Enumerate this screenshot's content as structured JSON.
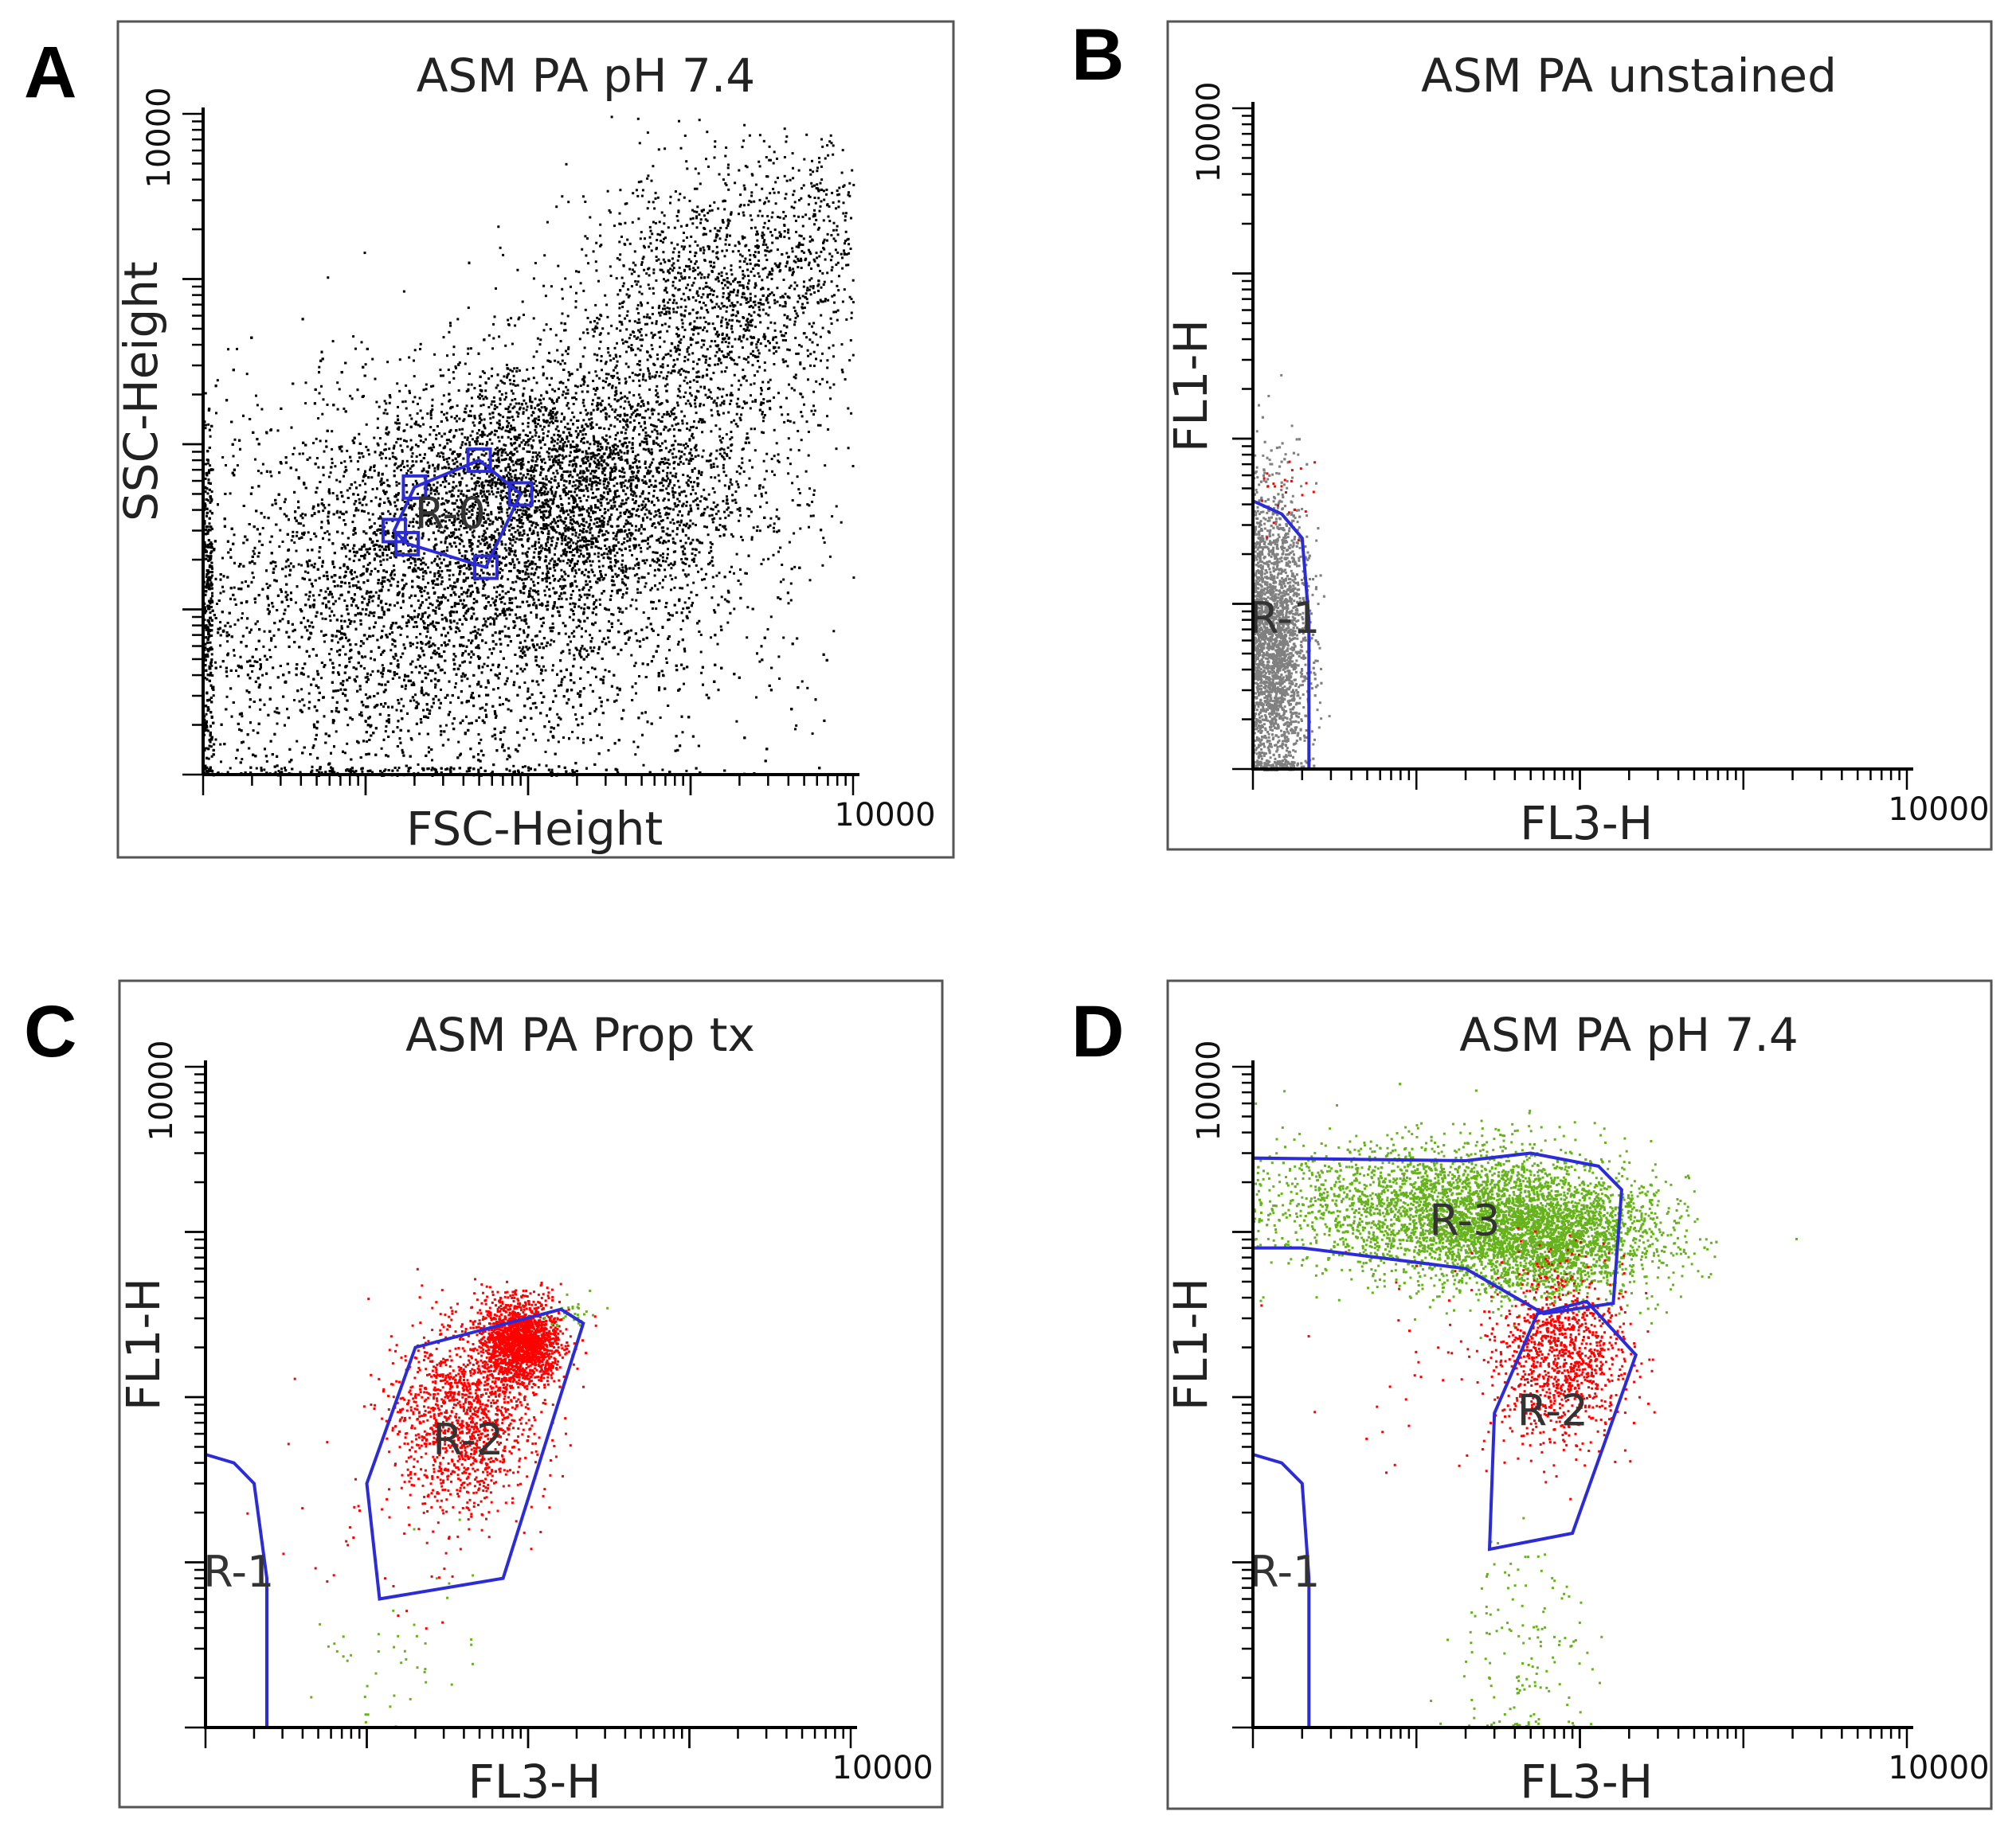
{
  "figure": {
    "panels": [
      {
        "letter": "A",
        "title": "ASM PA pH 7.4",
        "xlabel": "FSC-Height",
        "ylabel": "SSC-Height"
      },
      {
        "letter": "B",
        "title": "ASM PA unstained",
        "xlabel": "FL3-H",
        "ylabel": "FL1-H"
      },
      {
        "letter": "C",
        "title": "ASM PA Prop tx",
        "xlabel": "FL3-H",
        "ylabel": "FL1-H"
      },
      {
        "letter": "D",
        "title": "ASM PA pH 7.4",
        "xlabel": "FL3-H",
        "ylabel": "FL1-H"
      }
    ]
  },
  "colors": {
    "gate": "#2b2bd8",
    "gate_fill_r0": "#7f7fd0",
    "events_all": "#000000",
    "events_unstained": "#808080",
    "events_red": "#ff0000",
    "events_green": "#66b21a"
  },
  "chart_data": [
    {
      "panel": "A",
      "type": "scatter",
      "title": "ASM PA pH 7.4",
      "xlabel": "FSC-Height",
      "ylabel": "SSC-Height",
      "xscale": "log",
      "yscale": "log",
      "xlim": [
        1,
        10000
      ],
      "ylim": [
        1,
        10000
      ],
      "x_tick_label": "10000",
      "y_tick_label": "10000",
      "series": [
        {
          "color": "#000000",
          "clusters": [
            {
              "cx": 20,
              "cy": 9,
              "sx": 0.9,
              "sy": 0.6,
              "n": 9000
            },
            {
              "cx": 150,
              "cy": 55,
              "sx": 0.6,
              "sy": 0.4,
              "n": 4000
            },
            {
              "cx": 1500,
              "cy": 700,
              "sx": 0.45,
              "sy": 0.4,
              "n": 1600
            },
            {
              "cx": 5000,
              "cy": 2500,
              "sx": 0.25,
              "sy": 0.3,
              "n": 250
            }
          ]
        }
      ],
      "gates": [
        {
          "name": "R-0",
          "filled": true,
          "vertices": [
            [
              15,
              30
            ],
            [
              20,
              55
            ],
            [
              50,
              80
            ],
            [
              90,
              50
            ],
            [
              55,
              18
            ],
            [
              18,
              25
            ]
          ]
        }
      ]
    },
    {
      "panel": "B",
      "type": "scatter",
      "title": "ASM PA unstained",
      "xlabel": "FL3-H",
      "ylabel": "FL1-H",
      "xscale": "log",
      "yscale": "log",
      "xlim": [
        1,
        10000
      ],
      "ylim": [
        1,
        10000
      ],
      "x_tick_label": "10000",
      "y_tick_label": "10000",
      "series": [
        {
          "color": "#808080",
          "clusters": [
            {
              "cx": 1.35,
              "cy": 6,
              "sx": 0.1,
              "sy": 0.45,
              "n": 3500
            }
          ]
        },
        {
          "color": "#ff0000",
          "clusters": [
            {
              "cx": 1.5,
              "cy": 45,
              "sx": 0.1,
              "sy": 0.12,
              "n": 25
            }
          ]
        }
      ],
      "gates": [
        {
          "name": "R-1",
          "filled": false,
          "vertices": [
            [
              1,
              1
            ],
            [
              1,
              42
            ],
            [
              1.5,
              35
            ],
            [
              2,
              25
            ],
            [
              2.2,
              8
            ],
            [
              2.2,
              1
            ]
          ]
        }
      ]
    },
    {
      "panel": "C",
      "type": "scatter",
      "title": "ASM PA Prop tx",
      "xlabel": "FL3-H",
      "ylabel": "FL1-H",
      "xscale": "log",
      "yscale": "log",
      "xlim": [
        1,
        10000
      ],
      "ylim": [
        1,
        10000
      ],
      "x_tick_label": "10000",
      "y_tick_label": "10000",
      "series": [
        {
          "color": "#ff0000",
          "clusters": [
            {
              "cx": 90,
              "cy": 220,
              "sx": 0.12,
              "sy": 0.12,
              "n": 1800
            },
            {
              "cx": 40,
              "cy": 80,
              "sx": 0.22,
              "sy": 0.28,
              "n": 1400
            },
            {
              "cx": 12,
              "cy": 20,
              "sx": 0.35,
              "sy": 0.45,
              "n": 40
            }
          ]
        },
        {
          "color": "#66b21a",
          "clusters": [
            {
              "cx": 15,
              "cy": 3,
              "sx": 0.25,
              "sy": 0.3,
              "n": 45
            },
            {
              "cx": 180,
              "cy": 320,
              "sx": 0.06,
              "sy": 0.05,
              "n": 30
            }
          ]
        }
      ],
      "gates": [
        {
          "name": "R-1",
          "filled": false,
          "vertices": [
            [
              1,
              1
            ],
            [
              1,
              45
            ],
            [
              1.5,
              40
            ],
            [
              2,
              30
            ],
            [
              2.4,
              8
            ],
            [
              2.4,
              1
            ]
          ]
        },
        {
          "name": "R-2",
          "filled": false,
          "vertices": [
            [
              12,
              6
            ],
            [
              10,
              30
            ],
            [
              20,
              200
            ],
            [
              160,
              340
            ],
            [
              220,
              280
            ],
            [
              70,
              8
            ]
          ]
        }
      ]
    },
    {
      "panel": "D",
      "type": "scatter",
      "title": "ASM PA pH 7.4",
      "xlabel": "FL3-H",
      "ylabel": "FL1-H",
      "xscale": "log",
      "yscale": "log",
      "xlim": [
        1,
        10000
      ],
      "ylim": [
        1,
        10000
      ],
      "x_tick_label": "10000",
      "y_tick_label": "10000",
      "series": [
        {
          "color": "#66b21a",
          "clusters": [
            {
              "cx": 15,
              "cy": 1400,
              "sx": 0.5,
              "sy": 0.2,
              "n": 3200
            },
            {
              "cx": 60,
              "cy": 950,
              "sx": 0.35,
              "sy": 0.18,
              "n": 2600
            },
            {
              "cx": 45,
              "cy": 3,
              "sx": 0.2,
              "sy": 0.35,
              "n": 150
            }
          ]
        },
        {
          "color": "#ff0000",
          "clusters": [
            {
              "cx": 75,
              "cy": 180,
              "sx": 0.2,
              "sy": 0.25,
              "n": 1100
            },
            {
              "cx": 20,
              "cy": 180,
              "sx": 0.4,
              "sy": 0.4,
              "n": 60
            }
          ]
        }
      ],
      "gates": [
        {
          "name": "R-1",
          "filled": false,
          "vertices": [
            [
              1,
              1
            ],
            [
              1,
              45
            ],
            [
              1.5,
              40
            ],
            [
              2,
              30
            ],
            [
              2.2,
              8
            ],
            [
              2.2,
              1
            ]
          ]
        },
        {
          "name": "R-2",
          "filled": false,
          "vertices": [
            [
              28,
              12
            ],
            [
              30,
              80
            ],
            [
              55,
              320
            ],
            [
              110,
              380
            ],
            [
              220,
              180
            ],
            [
              90,
              15
            ]
          ]
        },
        {
          "name": "R-3",
          "filled": false,
          "vertices": [
            [
              1,
              800
            ],
            [
              1,
              2800
            ],
            [
              20,
              2700
            ],
            [
              50,
              3000
            ],
            [
              130,
              2500
            ],
            [
              180,
              1800
            ],
            [
              160,
              370
            ],
            [
              60,
              320
            ],
            [
              20,
              600
            ],
            [
              2,
              800
            ]
          ]
        }
      ]
    }
  ]
}
